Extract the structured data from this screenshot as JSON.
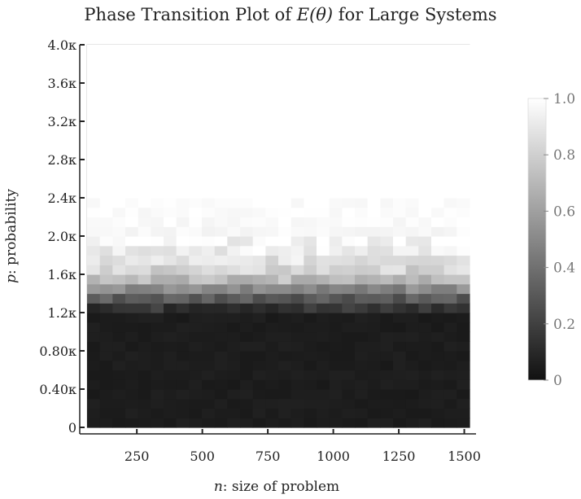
{
  "chart_data": {
    "type": "heatmap",
    "title_prefix": "Phase Transition Plot of ",
    "title_math": "E(θ)",
    "title_suffix": " for Large Systems",
    "xlabel_var": "n",
    "xlabel_text": ": size of problem",
    "ylabel_var": "p",
    "ylabel_text": ": probability",
    "x_ticks": [
      250,
      500,
      750,
      1000,
      1250,
      1500
    ],
    "x_range": [
      60,
      1520
    ],
    "y_ticks": [
      "0",
      "0.40κ",
      "0.80κ",
      "1.2κ",
      "1.6κ",
      "2.0κ",
      "2.4κ",
      "2.8κ",
      "3.2κ",
      "3.6κ",
      "4.0κ"
    ],
    "y_range": [
      0,
      4.0
    ],
    "grid_cols": 30,
    "grid_rows": 40,
    "value_profile": [
      {
        "row_from": 0,
        "row_to": 11,
        "value": 0.05
      },
      {
        "row": 12,
        "value": 0.15
      },
      {
        "row": 13,
        "value": 0.32
      },
      {
        "row": 14,
        "value": 0.5
      },
      {
        "row": 15,
        "value": 0.72
      },
      {
        "row": 16,
        "value": 0.82
      },
      {
        "row": 17,
        "value": 0.88
      },
      {
        "row": 18,
        "value": 0.93
      },
      {
        "row": 19,
        "value": 0.96
      },
      {
        "row": 20,
        "value": 0.97
      },
      {
        "row": 21,
        "value": 0.98
      },
      {
        "row": 22,
        "value": 0.985
      },
      {
        "row": 23,
        "value": 0.99
      },
      {
        "row_from": 24,
        "row_to": 39,
        "value": 1.0
      }
    ],
    "colorbar": {
      "min": 0,
      "max": 1,
      "ticks": [
        "0",
        "0.2",
        "0.4",
        "0.6",
        "0.8",
        "1.0"
      ],
      "colors": [
        "#111111",
        "#ffffff"
      ]
    },
    "background_color": "#ffffff",
    "axis_color": "#222222"
  }
}
